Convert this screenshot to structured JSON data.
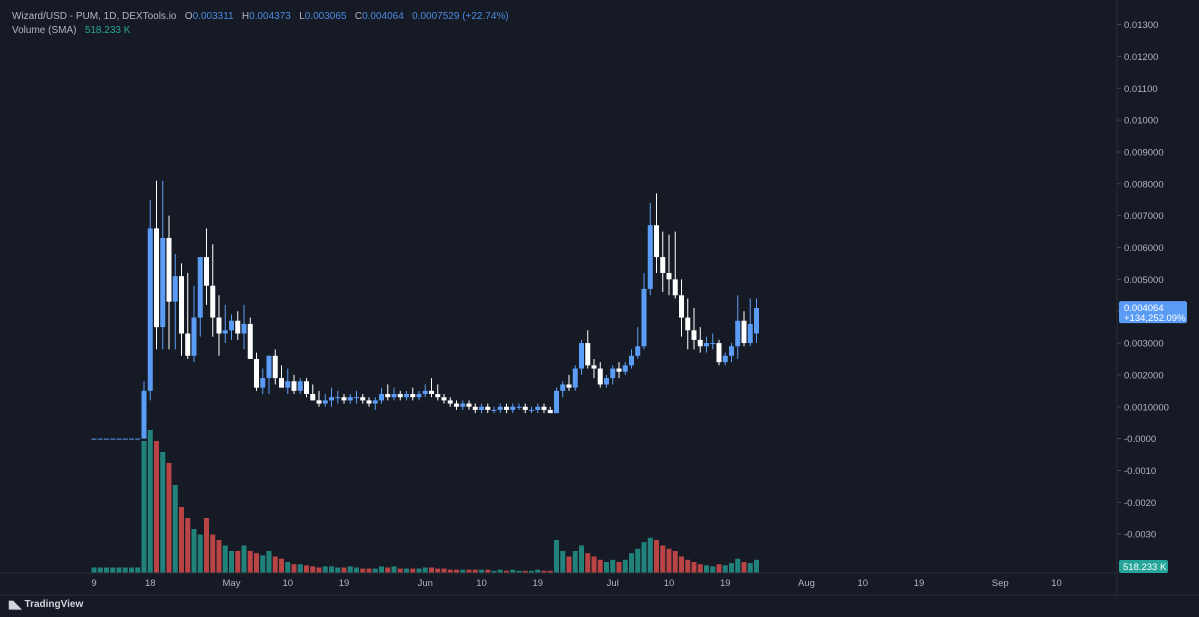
{
  "legend": {
    "symbol": "Wizard/USD - PUM, 1D, DEXTools.io",
    "o_label": "O",
    "o_value": "0.003311",
    "h_label": "H",
    "h_value": "0.004373",
    "l_label": "L",
    "l_value": "0.003065",
    "c_label": "C",
    "c_value": "0.004064",
    "change": "0.0007529 (+22.74%)",
    "volume_label": "Volume (SMA)",
    "volume_value": "518.233 K"
  },
  "price_badge": {
    "price": "0.004064",
    "change": "+134,252.09%"
  },
  "volume_badge": "518.233 K",
  "brand": "TradingView",
  "colors": {
    "background": "#161a25",
    "up_candle": "#5b9cf6",
    "down_candle": "#ffffff",
    "volume_up": "#26a69a",
    "volume_down": "#ef5350",
    "axis_text": "#b2b5be"
  },
  "chart_data": {
    "type": "candlestick",
    "y_axis_ticks": [
      "0.01300",
      "0.01200",
      "0.01100",
      "0.01000",
      "0.009000",
      "0.008000",
      "0.007000",
      "0.006000",
      "0.005000",
      "0.004000",
      "0.003000",
      "0.002000",
      "0.0010000",
      "-0.0000",
      "-0.0010",
      "-0.0020",
      "-0.0030"
    ],
    "ylim": [
      -0.004,
      0.0133
    ],
    "x_axis_ticks": [
      {
        "label": "9",
        "day": 0
      },
      {
        "label": "18",
        "day": 9
      },
      {
        "label": "May",
        "day": 22
      },
      {
        "label": "10",
        "day": 31
      },
      {
        "label": "19",
        "day": 40
      },
      {
        "label": "Jun",
        "day": 53
      },
      {
        "label": "10",
        "day": 62
      },
      {
        "label": "19",
        "day": 71
      },
      {
        "label": "Jul",
        "day": 83
      },
      {
        "label": "10",
        "day": 92
      },
      {
        "label": "19",
        "day": 101
      },
      {
        "label": "Aug",
        "day": 114
      },
      {
        "label": "10",
        "day": 123
      },
      {
        "label": "19",
        "day": 132
      },
      {
        "label": "Sep",
        "day": 145
      },
      {
        "label": "10",
        "day": 154
      }
    ],
    "start_date": "Apr 9",
    "candles": [
      [
        0,
        0,
        0,
        0,
        0.5
      ],
      [
        0,
        0,
        0,
        0,
        0.5
      ],
      [
        0,
        0,
        0,
        0,
        0.5
      ],
      [
        0,
        0,
        0,
        0,
        0.5
      ],
      [
        0,
        0,
        0,
        0,
        0.5
      ],
      [
        0,
        0,
        0,
        0,
        0.5
      ],
      [
        0,
        0,
        0,
        0,
        0.5
      ],
      [
        0,
        0,
        0,
        0,
        0.5
      ],
      [
        0,
        0.0018,
        0,
        0.0015,
        12
      ],
      [
        0.0015,
        0.0075,
        0.0012,
        0.0066,
        13
      ],
      [
        0.0066,
        0.0081,
        0.0028,
        0.0035,
        12
      ],
      [
        0.0035,
        0.0081,
        0.0028,
        0.0063,
        11
      ],
      [
        0.0063,
        0.007,
        0.0028,
        0.0043,
        10
      ],
      [
        0.0043,
        0.0058,
        0.0028,
        0.0051,
        8
      ],
      [
        0.0051,
        0.0055,
        0.0026,
        0.0033,
        6
      ],
      [
        0.0033,
        0.0052,
        0.0025,
        0.0026,
        5
      ],
      [
        0.0026,
        0.0048,
        0.0024,
        0.0038,
        4
      ],
      [
        0.0038,
        0.0057,
        0.0032,
        0.0057,
        3.5
      ],
      [
        0.0057,
        0.0066,
        0.0042,
        0.0048,
        5
      ],
      [
        0.0048,
        0.0061,
        0.0032,
        0.0038,
        3.5
      ],
      [
        0.0038,
        0.0045,
        0.0026,
        0.0033,
        3
      ],
      [
        0.0033,
        0.0042,
        0.003,
        0.0034,
        2.5
      ],
      [
        0.0034,
        0.0039,
        0.0031,
        0.0037,
        2
      ],
      [
        0.0037,
        0.004,
        0.0031,
        0.0033,
        2
      ],
      [
        0.0033,
        0.0042,
        0.0028,
        0.0036,
        2.5
      ],
      [
        0.0036,
        0.0038,
        0.0025,
        0.0025,
        2
      ],
      [
        0.0025,
        0.0027,
        0.0015,
        0.0016,
        1.8
      ],
      [
        0.0016,
        0.0022,
        0.0014,
        0.0019,
        1.6
      ],
      [
        0.0019,
        0.0026,
        0.0014,
        0.0026,
        2
      ],
      [
        0.0026,
        0.0028,
        0.0017,
        0.0019,
        1.5
      ],
      [
        0.0019,
        0.0023,
        0.0016,
        0.0016,
        1.3
      ],
      [
        0.0016,
        0.0022,
        0.0014,
        0.0018,
        1
      ],
      [
        0.0018,
        0.002,
        0.0014,
        0.0015,
        0.8
      ],
      [
        0.0015,
        0.0019,
        0.0014,
        0.0018,
        0.8
      ],
      [
        0.0018,
        0.0019,
        0.0013,
        0.0014,
        0.7
      ],
      [
        0.0014,
        0.0017,
        0.0012,
        0.0012,
        0.6
      ],
      [
        0.0012,
        0.0015,
        0.001,
        0.0011,
        0.5
      ],
      [
        0.0011,
        0.0014,
        0.001,
        0.0012,
        0.6
      ],
      [
        0.0012,
        0.0016,
        0.001,
        0.0013,
        0.6
      ],
      [
        0.0013,
        0.0015,
        0.0011,
        0.0013,
        0.5
      ],
      [
        0.0013,
        0.0014,
        0.0011,
        0.0012,
        0.5
      ],
      [
        0.0012,
        0.0014,
        0.0011,
        0.0013,
        0.6
      ],
      [
        0.0013,
        0.0015,
        0.0011,
        0.0013,
        0.5
      ],
      [
        0.0013,
        0.0014,
        0.0011,
        0.0012,
        0.4
      ],
      [
        0.0012,
        0.0013,
        0.001,
        0.0011,
        0.4
      ],
      [
        0.0011,
        0.0013,
        0.0009,
        0.0012,
        0.4
      ],
      [
        0.0012,
        0.0016,
        0.0011,
        0.0014,
        0.6
      ],
      [
        0.0014,
        0.0017,
        0.0012,
        0.0013,
        0.5
      ],
      [
        0.0013,
        0.0016,
        0.0012,
        0.0014,
        0.6
      ],
      [
        0.0014,
        0.0015,
        0.0012,
        0.0013,
        0.4
      ],
      [
        0.0013,
        0.0015,
        0.0012,
        0.0014,
        0.4
      ],
      [
        0.0014,
        0.0016,
        0.0012,
        0.0013,
        0.4
      ],
      [
        0.0013,
        0.0015,
        0.0012,
        0.0014,
        0.4
      ],
      [
        0.0014,
        0.0017,
        0.0013,
        0.0015,
        0.5
      ],
      [
        0.0015,
        0.0019,
        0.0013,
        0.0014,
        0.5
      ],
      [
        0.0014,
        0.0017,
        0.0012,
        0.0013,
        0.4
      ],
      [
        0.0013,
        0.0014,
        0.0011,
        0.0012,
        0.4
      ],
      [
        0.0012,
        0.0013,
        0.001,
        0.0011,
        0.3
      ],
      [
        0.0011,
        0.0012,
        0.0009,
        0.001,
        0.3
      ],
      [
        0.001,
        0.0012,
        0.0009,
        0.0011,
        0.3
      ],
      [
        0.0011,
        0.0012,
        0.0009,
        0.001,
        0.3
      ],
      [
        0.001,
        0.0011,
        0.0008,
        0.0009,
        0.3
      ],
      [
        0.0009,
        0.0011,
        0.0008,
        0.001,
        0.3
      ],
      [
        0.001,
        0.0011,
        0.0008,
        0.0009,
        0.3
      ],
      [
        0.0009,
        0.001,
        0.0008,
        0.0009,
        0.2
      ],
      [
        0.0009,
        0.0011,
        0.0008,
        0.001,
        0.3
      ],
      [
        0.001,
        0.0011,
        0.0008,
        0.0009,
        0.2
      ],
      [
        0.0009,
        0.0011,
        0.0008,
        0.001,
        0.3
      ],
      [
        0.001,
        0.0011,
        0.0009,
        0.001,
        0.2
      ],
      [
        0.001,
        0.0011,
        0.0008,
        0.0009,
        0.2
      ],
      [
        0.0009,
        0.001,
        0.0008,
        0.0009,
        0.2
      ],
      [
        0.0009,
        0.0011,
        0.0008,
        0.001,
        0.3
      ],
      [
        0.001,
        0.0011,
        0.0008,
        0.0009,
        0.2
      ],
      [
        0.0009,
        0.001,
        0.0008,
        0.0008,
        0.2
      ],
      [
        0.0008,
        0.0016,
        0.0008,
        0.0015,
        3
      ],
      [
        0.0015,
        0.0018,
        0.0013,
        0.0017,
        2
      ],
      [
        0.0017,
        0.002,
        0.0015,
        0.0016,
        1.5
      ],
      [
        0.0016,
        0.0023,
        0.0015,
        0.0022,
        2
      ],
      [
        0.0022,
        0.0031,
        0.002,
        0.003,
        2.5
      ],
      [
        0.003,
        0.0034,
        0.0022,
        0.0023,
        1.8
      ],
      [
        0.0023,
        0.0025,
        0.0019,
        0.0022,
        1.5
      ],
      [
        0.0022,
        0.0024,
        0.0016,
        0.0017,
        1.2
      ],
      [
        0.0017,
        0.002,
        0.0016,
        0.0019,
        1
      ],
      [
        0.0019,
        0.0023,
        0.0017,
        0.0022,
        1.2
      ],
      [
        0.0022,
        0.0024,
        0.0019,
        0.0021,
        1
      ],
      [
        0.0021,
        0.0024,
        0.002,
        0.0023,
        1.2
      ],
      [
        0.0023,
        0.0028,
        0.0022,
        0.0026,
        1.8
      ],
      [
        0.0026,
        0.0035,
        0.0025,
        0.0029,
        2.2
      ],
      [
        0.0029,
        0.0052,
        0.0028,
        0.0047,
        2.8
      ],
      [
        0.0047,
        0.0074,
        0.0045,
        0.0067,
        3.2
      ],
      [
        0.0067,
        0.0077,
        0.0052,
        0.0057,
        3
      ],
      [
        0.0057,
        0.0065,
        0.0046,
        0.0052,
        2.5
      ],
      [
        0.0052,
        0.0064,
        0.0045,
        0.005,
        2.2
      ],
      [
        0.005,
        0.0065,
        0.0044,
        0.0045,
        2
      ],
      [
        0.0045,
        0.005,
        0.0032,
        0.0038,
        1.5
      ],
      [
        0.0038,
        0.0044,
        0.0028,
        0.0034,
        1.2
      ],
      [
        0.0034,
        0.0041,
        0.0028,
        0.0031,
        1
      ],
      [
        0.0031,
        0.0035,
        0.0027,
        0.0029,
        0.8
      ],
      [
        0.0029,
        0.0032,
        0.0027,
        0.003,
        0.7
      ],
      [
        0.003,
        0.0033,
        0.0028,
        0.003,
        0.6
      ],
      [
        0.003,
        0.0031,
        0.0023,
        0.0024,
        0.8
      ],
      [
        0.0024,
        0.0027,
        0.0023,
        0.0026,
        0.7
      ],
      [
        0.0026,
        0.003,
        0.0024,
        0.0029,
        0.9
      ],
      [
        0.0029,
        0.0045,
        0.0025,
        0.0037,
        1.3
      ],
      [
        0.0037,
        0.004,
        0.0029,
        0.003,
        1
      ],
      [
        0.003,
        0.0044,
        0.0029,
        0.0036,
        0.9
      ],
      [
        0.0033,
        0.0044,
        0.003,
        0.0041,
        1.2
      ]
    ]
  }
}
